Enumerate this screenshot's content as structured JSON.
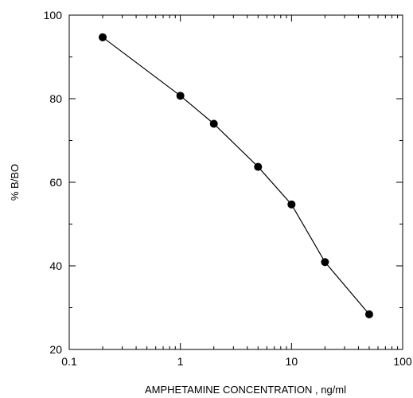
{
  "chart_data": {
    "type": "line",
    "title": "",
    "xlabel": "AMPHETAMINE  CONCENTRATION , ng/ml",
    "ylabel": "% B/BO",
    "x_scale": "log",
    "xlim": [
      0.1,
      100
    ],
    "ylim": [
      20,
      100
    ],
    "x_ticks": [
      {
        "value": 0.1,
        "label": "0.1"
      },
      {
        "value": 1,
        "label": "1"
      },
      {
        "value": 10,
        "label": "10"
      },
      {
        "value": 100,
        "label": "100"
      }
    ],
    "y_ticks": [
      {
        "value": 20,
        "label": "20"
      },
      {
        "value": 40,
        "label": "40"
      },
      {
        "value": 60,
        "label": "60"
      },
      {
        "value": 80,
        "label": "80"
      },
      {
        "value": 100,
        "label": "100"
      }
    ],
    "grid": false,
    "series": [
      {
        "x": [
          0.2,
          1,
          2,
          5,
          10,
          20,
          50
        ],
        "y": [
          94.7,
          80.7,
          74.0,
          63.7,
          54.7,
          40.9,
          28.4
        ]
      }
    ],
    "colors": {
      "line": "#000000",
      "marker": "#000000"
    }
  }
}
